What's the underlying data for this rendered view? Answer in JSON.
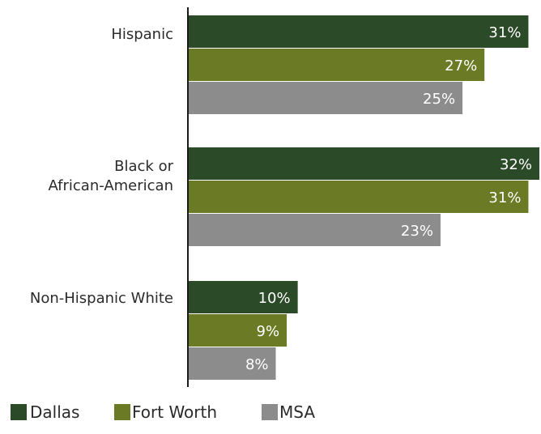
{
  "chart_data": {
    "type": "bar",
    "orientation": "horizontal",
    "categories": [
      [
        "Hispanic"
      ],
      [
        "Black or",
        "African-American"
      ],
      [
        "Non-Hispanic White"
      ]
    ],
    "series": [
      {
        "name": "Dallas",
        "color": "#2b4a28",
        "values": [
          31,
          32,
          10
        ]
      },
      {
        "name": "Fort Worth",
        "color": "#6b7a24",
        "values": [
          27,
          31,
          9
        ]
      },
      {
        "name": "MSA",
        "color": "#8c8c8c",
        "values": [
          25,
          23,
          8
        ]
      }
    ],
    "value_suffix": "%",
    "xlim": [
      0,
      32
    ],
    "grid": false,
    "legend_position": "bottom-left",
    "data_labels": true
  }
}
